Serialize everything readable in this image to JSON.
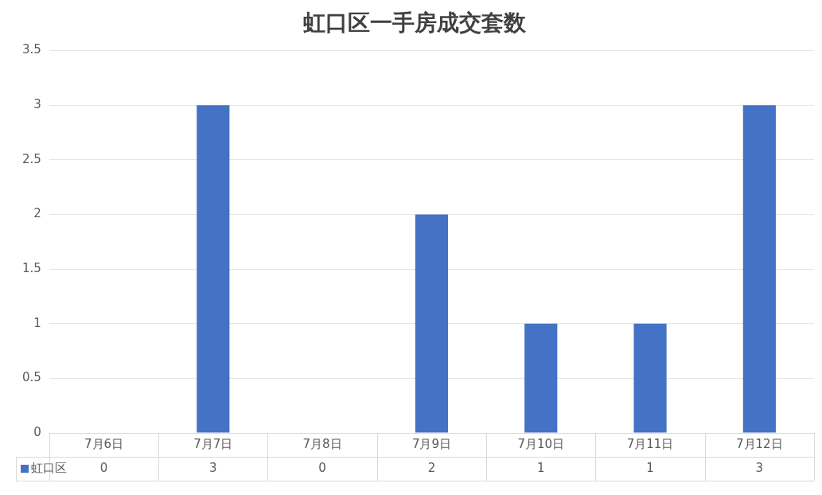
{
  "chart_data": {
    "type": "bar",
    "title": "虹口区一手房成交套数",
    "categories": [
      "7月6日",
      "7月7日",
      "7月8日",
      "7月9日",
      "7月10日",
      "7月11日",
      "7月12日"
    ],
    "series": [
      {
        "name": "虹口区",
        "color": "#4472c4",
        "values": [
          0,
          3,
          0,
          2,
          1,
          1,
          3
        ]
      }
    ],
    "ylim": [
      0,
      3.5
    ],
    "yticks": [
      0,
      0.5,
      1,
      1.5,
      2,
      2.5,
      3,
      3.5
    ],
    "grid": "y",
    "legend": "bottom",
    "data_labels": true
  }
}
